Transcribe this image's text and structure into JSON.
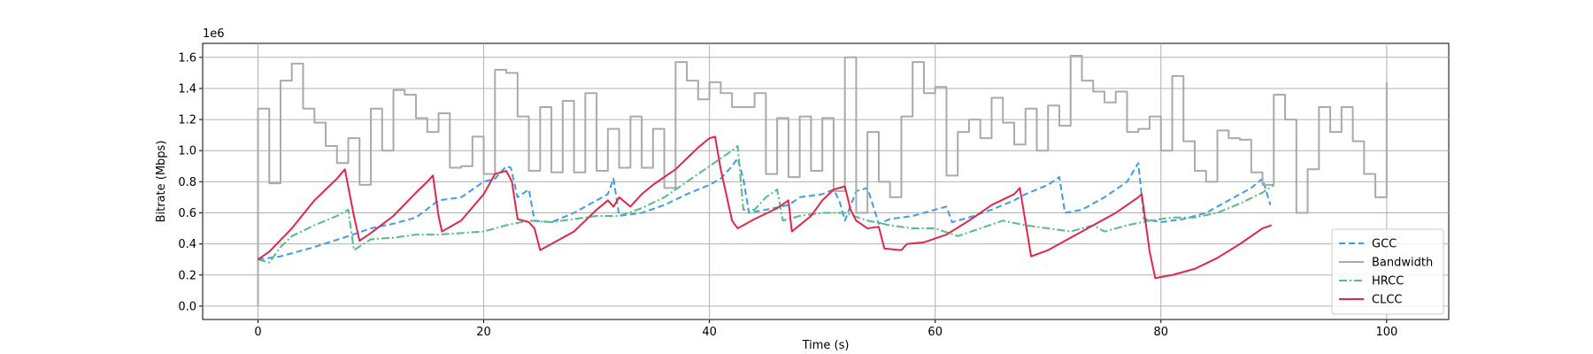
{
  "chart_data": {
    "type": "line",
    "offset_text": "1e6",
    "xlabel": "Time (s)",
    "ylabel": "Bitrate (Mbps)",
    "xlim": [
      -4.9,
      105.5
    ],
    "ylim": [
      -0.086,
      1.69
    ],
    "xticks": [
      0,
      20,
      40,
      60,
      80,
      100
    ],
    "yticks": [
      {
        "value": 0,
        "label": "0.0"
      },
      0.2,
      0.4,
      0.6,
      0.8,
      {
        "value": 1,
        "label": "1.0"
      },
      1.2,
      1.4,
      1.6
    ],
    "grid": true,
    "legend": "lower right",
    "series": [
      {
        "name": "GCC",
        "color": "#3d9be9",
        "linestyle": "dashed",
        "x": [
          0,
          2,
          5,
          8,
          10,
          12,
          14,
          16,
          18,
          19,
          20,
          21,
          22,
          22.4,
          23,
          24,
          24.5,
          26,
          28,
          30,
          31,
          31.5,
          32,
          34,
          36,
          38,
          40,
          41,
          42,
          42.5,
          43,
          43.5,
          45,
          47,
          48,
          50,
          51,
          51.5,
          52,
          53,
          54,
          55,
          56,
          58,
          60,
          61,
          61.5,
          63,
          65,
          67,
          68,
          70,
          71,
          71.5,
          73,
          75,
          77,
          78,
          78.5,
          80,
          82,
          84,
          86,
          88,
          89,
          89.7
        ],
        "values": [
          0.3,
          0.32,
          0.38,
          0.45,
          0.5,
          0.53,
          0.57,
          0.68,
          0.7,
          0.75,
          0.8,
          0.82,
          0.9,
          0.89,
          0.7,
          0.75,
          0.55,
          0.54,
          0.6,
          0.68,
          0.72,
          0.82,
          0.58,
          0.6,
          0.65,
          0.72,
          0.78,
          0.82,
          0.9,
          0.95,
          0.82,
          0.6,
          0.62,
          0.65,
          0.7,
          0.72,
          0.75,
          0.68,
          0.55,
          0.74,
          0.76,
          0.53,
          0.56,
          0.58,
          0.62,
          0.64,
          0.54,
          0.57,
          0.62,
          0.68,
          0.72,
          0.78,
          0.83,
          0.6,
          0.62,
          0.7,
          0.8,
          0.92,
          0.56,
          0.54,
          0.56,
          0.6,
          0.68,
          0.76,
          0.82,
          0.65
        ]
      },
      {
        "name": "Bandwidth",
        "color": "#aaaaaa",
        "linestyle": "solid",
        "drawstyle": "steps-post",
        "x": [
          0,
          0,
          1,
          2,
          3,
          4,
          5,
          6,
          7,
          8,
          9,
          10,
          11,
          12,
          13,
          14,
          15,
          16,
          17,
          18,
          19,
          20,
          21,
          22,
          23,
          24,
          25,
          26,
          27,
          28,
          29,
          30,
          31,
          32,
          33,
          34,
          35,
          36,
          37,
          38,
          39,
          40,
          41,
          42,
          43,
          44,
          45,
          46,
          47,
          48,
          49,
          50,
          51,
          52,
          53,
          54,
          55,
          56,
          57,
          58,
          59,
          60,
          61,
          62,
          63,
          64,
          65,
          66,
          67,
          68,
          69,
          70,
          71,
          72,
          73,
          74,
          75,
          76,
          77,
          78,
          79,
          80,
          81,
          82,
          83,
          84,
          85,
          86,
          87,
          88,
          89,
          90,
          91,
          92,
          93,
          94,
          95,
          96,
          97,
          98,
          99,
          100
        ],
        "values": [
          0,
          1.27,
          0.79,
          1.45,
          1.56,
          1.27,
          1.18,
          1.03,
          0.92,
          1.08,
          0.78,
          1.27,
          1.0,
          1.39,
          1.36,
          1.21,
          1.12,
          1.24,
          0.89,
          0.9,
          1.09,
          0.85,
          1.52,
          1.5,
          1.22,
          0.87,
          1.28,
          0.86,
          1.32,
          0.86,
          1.37,
          0.87,
          1.14,
          0.89,
          1.22,
          0.89,
          1.14,
          0.76,
          1.57,
          1.45,
          1.33,
          1.44,
          1.37,
          1.28,
          1.28,
          1.37,
          0.85,
          1.21,
          0.83,
          1.22,
          0.87,
          1.21,
          0.74,
          1.6,
          0.6,
          1.12,
          0.8,
          0.7,
          1.22,
          1.57,
          1.37,
          1.41,
          0.84,
          1.12,
          1.2,
          1.08,
          1.34,
          1.18,
          1.04,
          1.27,
          1.0,
          1.29,
          1.16,
          1.61,
          1.45,
          1.38,
          1.31,
          1.38,
          1.12,
          1.14,
          1.22,
          1.0,
          1.48,
          1.06,
          0.87,
          0.8,
          1.13,
          1.08,
          1.07,
          0.86,
          0.78,
          1.36,
          1.2,
          0.6,
          0.88,
          1.28,
          1.12,
          1.28,
          1.06,
          0.85,
          0.7,
          1.44
        ]
      },
      {
        "name": "HRCC",
        "color": "#52be80",
        "linestyle": "dashdot",
        "x": [
          0,
          1,
          2,
          3,
          5,
          7,
          8,
          8.5,
          10,
          12,
          14,
          16,
          18,
          20,
          22,
          24,
          26,
          28,
          30,
          32,
          34,
          36,
          38,
          40,
          42,
          42.5,
          43,
          44,
          45,
          46,
          46.5,
          48,
          50,
          52,
          54,
          56,
          58,
          60,
          62,
          64,
          66,
          68,
          70,
          72,
          74,
          75,
          77,
          79,
          81,
          83,
          85,
          87,
          89,
          90
        ],
        "values": [
          0.3,
          0.28,
          0.38,
          0.45,
          0.52,
          0.58,
          0.62,
          0.36,
          0.43,
          0.44,
          0.46,
          0.46,
          0.47,
          0.48,
          0.52,
          0.55,
          0.54,
          0.56,
          0.58,
          0.58,
          0.63,
          0.7,
          0.8,
          0.9,
          1.0,
          1.03,
          0.62,
          0.62,
          0.7,
          0.75,
          0.55,
          0.58,
          0.6,
          0.6,
          0.55,
          0.52,
          0.5,
          0.5,
          0.45,
          0.5,
          0.55,
          0.52,
          0.5,
          0.48,
          0.52,
          0.48,
          0.52,
          0.55,
          0.57,
          0.57,
          0.6,
          0.66,
          0.73,
          0.78
        ]
      },
      {
        "name": "CLCC",
        "color": "#e0274a",
        "linestyle": "solid",
        "x": [
          0,
          1,
          3,
          5,
          6,
          7,
          7.7,
          8.5,
          9,
          10,
          12,
          14,
          15,
          15.5,
          16,
          16.3,
          18,
          20,
          21,
          22,
          22.5,
          23,
          24,
          24.5,
          25,
          26,
          28,
          30,
          31,
          31.5,
          32,
          33,
          34,
          35,
          36,
          37,
          38,
          39,
          40,
          40.5,
          41,
          42,
          42.5,
          44,
          46,
          47,
          47.3,
          49,
          50,
          51,
          52,
          52.5,
          53,
          54,
          55,
          55.5,
          57,
          57.5,
          59,
          61,
          63,
          65,
          67,
          67.5,
          68.5,
          70,
          72,
          74,
          76,
          78,
          78.3,
          79,
          79.5,
          81,
          83,
          85,
          87,
          89,
          89.8
        ],
        "values": [
          0.3,
          0.35,
          0.5,
          0.68,
          0.75,
          0.82,
          0.88,
          0.58,
          0.42,
          0.47,
          0.58,
          0.73,
          0.8,
          0.84,
          0.58,
          0.48,
          0.55,
          0.72,
          0.85,
          0.87,
          0.8,
          0.56,
          0.54,
          0.5,
          0.36,
          0.4,
          0.48,
          0.62,
          0.68,
          0.64,
          0.7,
          0.64,
          0.72,
          0.78,
          0.83,
          0.88,
          0.95,
          1.02,
          1.08,
          1.09,
          0.88,
          0.55,
          0.5,
          0.56,
          0.63,
          0.68,
          0.48,
          0.58,
          0.68,
          0.75,
          0.77,
          0.62,
          0.55,
          0.5,
          0.51,
          0.37,
          0.36,
          0.4,
          0.41,
          0.46,
          0.55,
          0.65,
          0.72,
          0.76,
          0.32,
          0.36,
          0.44,
          0.52,
          0.6,
          0.7,
          0.72,
          0.35,
          0.18,
          0.2,
          0.24,
          0.31,
          0.4,
          0.5,
          0.52
        ]
      }
    ]
  }
}
